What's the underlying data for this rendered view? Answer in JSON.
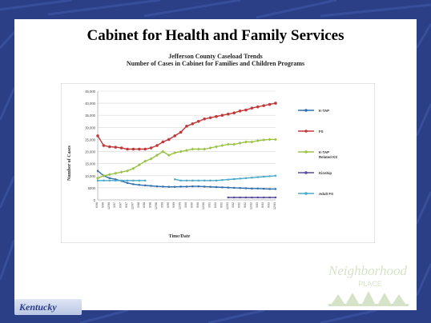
{
  "slide": {
    "title": "Cabinet for Health and Family Services",
    "logos": {
      "kentucky": "Kentucky",
      "neighborhood_line1": "Neighborhood",
      "neighborhood_line2": "PLACE"
    }
  },
  "colors": {
    "background": "#2a3f86",
    "k_tap": "#2f6fae",
    "fs": "#c0393b",
    "k_tap_related_ks": "#9dc248",
    "kinship": "#5a4a9c",
    "adult_fs": "#4aa8c8"
  },
  "chart_data": {
    "type": "line",
    "title": "Jefferson County Caseload Trends",
    "subtitle": "Number of Cases in Cabinet for Families and Children Programs",
    "xlabel": "Time/Date",
    "ylabel": "Number of Cases",
    "ylim": [
      0,
      45000
    ],
    "yticks": [
      "0",
      "5000",
      "10,000",
      "15,000",
      "20,000",
      "25,000",
      "30,000",
      "35,000",
      "40,000",
      "45,000"
    ],
    "grid": true,
    "legend": "right",
    "x": [
      "6/96",
      "9/96",
      "12/96",
      "3/97",
      "6/97",
      "9/97",
      "12/97",
      "3/98",
      "6/98",
      "9/98",
      "12/98",
      "3/99",
      "6/99",
      "9/99",
      "12/99",
      "3/00",
      "6/00",
      "9/00",
      "12/00",
      "3/01",
      "6/01",
      "9/01",
      "12/01",
      "3/02",
      "6/02",
      "9/02",
      "12/02",
      "3/03",
      "6/03",
      "9/03",
      "12/03"
    ],
    "series": [
      {
        "name": "K-TAP",
        "color": "#2f6fae",
        "values": [
          12000,
          10000,
          9000,
          8500,
          7800,
          7000,
          6500,
          6200,
          6000,
          5800,
          5600,
          5500,
          5400,
          5400,
          5500,
          5500,
          5600,
          5600,
          5500,
          5400,
          5300,
          5200,
          5100,
          5000,
          4900,
          4800,
          4700,
          4700,
          4600,
          4500,
          4500
        ]
      },
      {
        "name": "FS",
        "color": "#c0393b",
        "values": [
          26500,
          22500,
          22000,
          21800,
          21500,
          21000,
          21000,
          21000,
          21000,
          21500,
          22500,
          24000,
          25000,
          26500,
          28000,
          30500,
          31500,
          32500,
          33500,
          34000,
          34500,
          35000,
          35500,
          36000,
          36800,
          37200,
          38000,
          38500,
          39000,
          39500,
          40000
        ]
      },
      {
        "name": "K-TAP Related KS",
        "color": "#9dc248",
        "values": [
          9000,
          10000,
          10500,
          11000,
          11500,
          12000,
          13000,
          14500,
          16000,
          17000,
          18500,
          20000,
          18500,
          19500,
          20000,
          20500,
          21000,
          21000,
          21000,
          21500,
          22000,
          22500,
          23000,
          23000,
          23500,
          24000,
          24000,
          24500,
          24800,
          25000,
          25000
        ]
      },
      {
        "name": "Kinship",
        "color": "#5a4a9c",
        "values": [
          null,
          null,
          null,
          null,
          null,
          null,
          null,
          null,
          null,
          null,
          null,
          null,
          null,
          null,
          null,
          null,
          null,
          null,
          null,
          null,
          null,
          null,
          1000,
          1000,
          1000,
          1000,
          1000,
          1000,
          1000,
          1000,
          1000
        ]
      },
      {
        "name": "Adult FS",
        "color": "#4aa8c8",
        "values": [
          8000,
          8000,
          8000,
          8000,
          8000,
          8000,
          8000,
          8000,
          8000,
          null,
          null,
          null,
          null,
          8500,
          8000,
          8000,
          8000,
          8000,
          8000,
          8000,
          8000,
          8200,
          8400,
          8600,
          8800,
          9000,
          9200,
          9400,
          9600,
          9800,
          10000
        ]
      }
    ]
  }
}
